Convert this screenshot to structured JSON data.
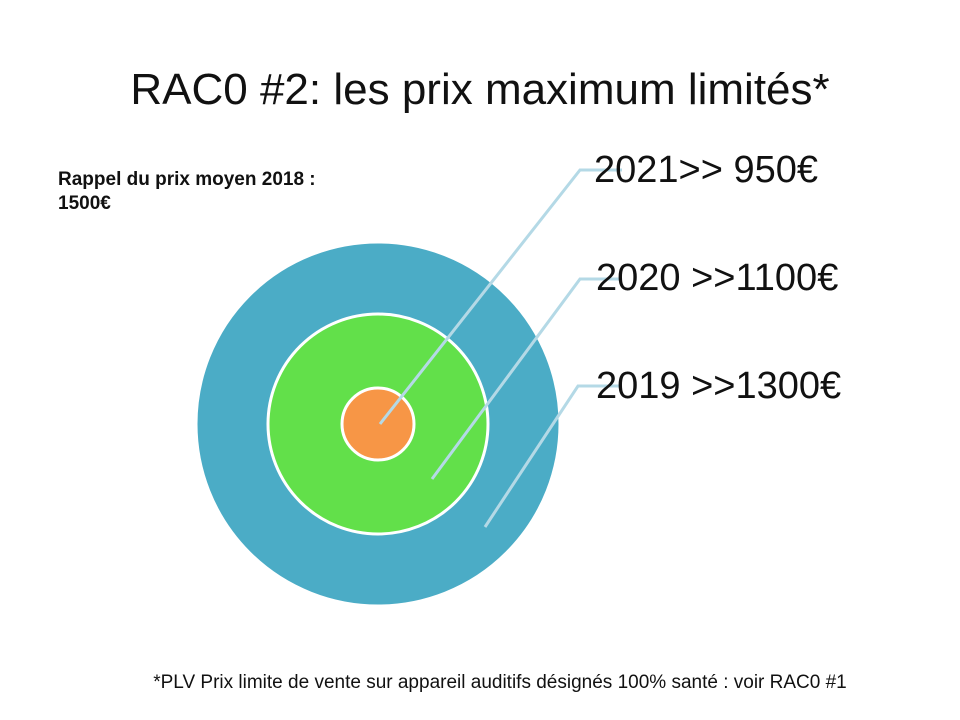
{
  "slide": {
    "title": "RAC0 #2: les prix maximum limités*",
    "recall_line1": "Rappel du prix moyen 2018 :",
    "recall_line2": "1500€",
    "footnote": "*PLV Prix limite de vente sur appareil auditifs désignés 100% santé : voir RAC0 #1"
  },
  "diagram": {
    "type": "nested-target",
    "rings": [
      {
        "label": "2019 >>1300€",
        "color": "#4BACC6"
      },
      {
        "label": "2020 >>1100€",
        "color": "#62E04A"
      },
      {
        "label": "2021>> 950€",
        "color": "#F79646"
      }
    ],
    "ring_border_color": "#FFFFFF",
    "callout_line_color": "#B4D9E6"
  }
}
